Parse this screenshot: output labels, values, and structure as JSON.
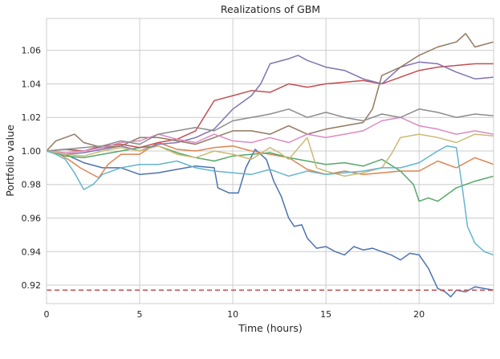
{
  "chart_data": {
    "type": "line",
    "title": "Realizations of GBM",
    "xlabel": "Time (hours)",
    "ylabel": "Portfolio value",
    "xlim": [
      0,
      24
    ],
    "ylim": [
      0.909,
      1.079
    ],
    "xticks": [
      0,
      5,
      10,
      15,
      20
    ],
    "yticks": [
      0.92,
      0.94,
      0.96,
      0.98,
      1.0,
      1.02,
      1.04,
      1.06
    ],
    "grid": true,
    "legend": "none",
    "threshold": {
      "y": 0.917,
      "color": "#c44e52",
      "style": "dashed"
    },
    "series": [
      {
        "color": "#4c72b0",
        "points": [
          [
            0,
            1.0
          ],
          [
            1,
            0.998
          ],
          [
            2,
            0.993
          ],
          [
            3,
            0.99
          ],
          [
            4,
            0.99
          ],
          [
            5,
            0.986
          ],
          [
            6,
            0.987
          ],
          [
            7,
            0.989
          ],
          [
            8,
            0.991
          ],
          [
            9,
            0.99
          ],
          [
            9.2,
            0.978
          ],
          [
            9.8,
            0.975
          ],
          [
            10.3,
            0.975
          ],
          [
            10.7,
            0.99
          ],
          [
            11.2,
            1.001
          ],
          [
            11.8,
            0.995
          ],
          [
            12.2,
            0.982
          ],
          [
            12.6,
            0.973
          ],
          [
            13,
            0.96
          ],
          [
            13.3,
            0.955
          ],
          [
            13.7,
            0.956
          ],
          [
            14,
            0.948
          ],
          [
            14.5,
            0.942
          ],
          [
            15,
            0.943
          ],
          [
            15.5,
            0.94
          ],
          [
            16,
            0.938
          ],
          [
            16.5,
            0.943
          ],
          [
            17,
            0.941
          ],
          [
            17.5,
            0.942
          ],
          [
            18,
            0.94
          ],
          [
            18.5,
            0.938
          ],
          [
            19,
            0.935
          ],
          [
            19.5,
            0.939
          ],
          [
            20,
            0.938
          ],
          [
            20.5,
            0.93
          ],
          [
            21,
            0.918
          ],
          [
            21.4,
            0.916
          ],
          [
            21.7,
            0.913
          ],
          [
            22,
            0.917
          ],
          [
            22.5,
            0.916
          ],
          [
            23,
            0.919
          ],
          [
            23.5,
            0.918
          ],
          [
            24,
            0.917
          ]
        ]
      },
      {
        "color": "#dd8452",
        "points": [
          [
            0,
            1.0
          ],
          [
            0.7,
            0.998
          ],
          [
            1.3,
            0.994
          ],
          [
            1.8,
            0.99
          ],
          [
            2.3,
            0.987
          ],
          [
            2.8,
            0.984
          ],
          [
            3.3,
            0.992
          ],
          [
            4,
            0.998
          ],
          [
            5,
            0.998
          ],
          [
            6,
            1.005
          ],
          [
            7,
            1.001
          ],
          [
            8,
            1.0
          ],
          [
            9,
            1.002
          ],
          [
            10,
            1.003
          ],
          [
            11,
            1.0
          ],
          [
            12,
            0.998
          ],
          [
            13,
            0.996
          ],
          [
            14,
            0.989
          ],
          [
            15,
            0.986
          ],
          [
            16,
            0.988
          ],
          [
            17,
            0.986
          ],
          [
            18,
            0.987
          ],
          [
            19,
            0.988
          ],
          [
            20,
            0.988
          ],
          [
            21,
            0.994
          ],
          [
            22,
            0.99
          ],
          [
            23,
            0.996
          ],
          [
            24,
            0.992
          ]
        ]
      },
      {
        "color": "#55a868",
        "points": [
          [
            0,
            1.0
          ],
          [
            1,
            0.997
          ],
          [
            2,
            0.996
          ],
          [
            3,
            0.998
          ],
          [
            4,
            1.0
          ],
          [
            5,
            1.002
          ],
          [
            6,
            1.003
          ],
          [
            7,
            0.999
          ],
          [
            8,
            0.996
          ],
          [
            9,
            0.994
          ],
          [
            10,
            0.997
          ],
          [
            11,
            0.998
          ],
          [
            12,
            0.999
          ],
          [
            13,
            0.996
          ],
          [
            14,
            0.994
          ],
          [
            15,
            0.992
          ],
          [
            16,
            0.993
          ],
          [
            17,
            0.991
          ],
          [
            18,
            0.995
          ],
          [
            19,
            0.988
          ],
          [
            19.7,
            0.98
          ],
          [
            20,
            0.97
          ],
          [
            20.5,
            0.972
          ],
          [
            21,
            0.97
          ],
          [
            22,
            0.978
          ],
          [
            23,
            0.982
          ],
          [
            24,
            0.985
          ]
        ]
      },
      {
        "color": "#c44e52",
        "points": [
          [
            0,
            1.0
          ],
          [
            1,
            1.001
          ],
          [
            2,
            1.0
          ],
          [
            3,
            1.003
          ],
          [
            4,
            1.004
          ],
          [
            5,
            1.002
          ],
          [
            6,
            1.005
          ],
          [
            7,
            1.007
          ],
          [
            8,
            1.012
          ],
          [
            9,
            1.03
          ],
          [
            10,
            1.033
          ],
          [
            11,
            1.036
          ],
          [
            12,
            1.035
          ],
          [
            13,
            1.04
          ],
          [
            14,
            1.038
          ],
          [
            15,
            1.04
          ],
          [
            16,
            1.041
          ],
          [
            17,
            1.042
          ],
          [
            18,
            1.04
          ],
          [
            19,
            1.044
          ],
          [
            20,
            1.048
          ],
          [
            21,
            1.05
          ],
          [
            22,
            1.051
          ],
          [
            23,
            1.052
          ],
          [
            24,
            1.052
          ]
        ]
      },
      {
        "color": "#8172b3",
        "points": [
          [
            0,
            1.0
          ],
          [
            1,
            0.998
          ],
          [
            2,
            0.999
          ],
          [
            3,
            1.001
          ],
          [
            4,
            1.003
          ],
          [
            5,
            1.0
          ],
          [
            6,
            1.004
          ],
          [
            7,
            1.005
          ],
          [
            8,
            1.008
          ],
          [
            9,
            1.013
          ],
          [
            10,
            1.025
          ],
          [
            11,
            1.033
          ],
          [
            11.5,
            1.04
          ],
          [
            12,
            1.052
          ],
          [
            13,
            1.055
          ],
          [
            13.5,
            1.057
          ],
          [
            14,
            1.054
          ],
          [
            15,
            1.05
          ],
          [
            16,
            1.048
          ],
          [
            17,
            1.043
          ],
          [
            18,
            1.04
          ],
          [
            19,
            1.05
          ],
          [
            20,
            1.053
          ],
          [
            21,
            1.052
          ],
          [
            22,
            1.047
          ],
          [
            23,
            1.043
          ],
          [
            24,
            1.044
          ]
        ]
      },
      {
        "color": "#937860",
        "points": [
          [
            0,
            1.0
          ],
          [
            0.5,
            1.006
          ],
          [
            1,
            1.008
          ],
          [
            1.5,
            1.01
          ],
          [
            2,
            1.005
          ],
          [
            3,
            1.002
          ],
          [
            4,
            1.003
          ],
          [
            5,
            1.008
          ],
          [
            6,
            1.008
          ],
          [
            7,
            1.006
          ],
          [
            8,
            1.004
          ],
          [
            9,
            1.008
          ],
          [
            10,
            1.012
          ],
          [
            11,
            1.012
          ],
          [
            12,
            1.01
          ],
          [
            13,
            1.015
          ],
          [
            14,
            1.01
          ],
          [
            15,
            1.013
          ],
          [
            16,
            1.015
          ],
          [
            17,
            1.017
          ],
          [
            17.5,
            1.025
          ],
          [
            18,
            1.045
          ],
          [
            19,
            1.05
          ],
          [
            20,
            1.057
          ],
          [
            21,
            1.062
          ],
          [
            22,
            1.065
          ],
          [
            22.5,
            1.07
          ],
          [
            23,
            1.062
          ],
          [
            24,
            1.065
          ]
        ]
      },
      {
        "color": "#da8bc3",
        "points": [
          [
            0,
            1.0
          ],
          [
            1,
            0.999
          ],
          [
            2,
            1.0
          ],
          [
            3,
            1.002
          ],
          [
            4,
            1.005
          ],
          [
            5,
            1.006
          ],
          [
            6,
            1.01
          ],
          [
            7,
            1.007
          ],
          [
            8,
            1.005
          ],
          [
            9,
            1.01
          ],
          [
            10,
            1.006
          ],
          [
            11,
            1.005
          ],
          [
            12,
            1.008
          ],
          [
            13,
            1.005
          ],
          [
            14,
            1.01
          ],
          [
            15,
            1.008
          ],
          [
            16,
            1.01
          ],
          [
            17,
            1.012
          ],
          [
            18,
            1.018
          ],
          [
            19,
            1.02
          ],
          [
            20,
            1.015
          ],
          [
            21,
            1.013
          ],
          [
            22,
            1.01
          ],
          [
            23,
            1.012
          ],
          [
            24,
            1.01
          ]
        ]
      },
      {
        "color": "#8c8c8c",
        "points": [
          [
            0,
            1.0
          ],
          [
            1,
            1.001
          ],
          [
            2,
            1.002
          ],
          [
            3,
            1.003
          ],
          [
            4,
            1.006
          ],
          [
            5,
            1.004
          ],
          [
            6,
            1.01
          ],
          [
            7,
            1.012
          ],
          [
            8,
            1.014
          ],
          [
            9,
            1.012
          ],
          [
            10,
            1.018
          ],
          [
            11,
            1.02
          ],
          [
            12,
            1.022
          ],
          [
            13,
            1.025
          ],
          [
            14,
            1.02
          ],
          [
            15,
            1.023
          ],
          [
            16,
            1.02
          ],
          [
            17,
            1.018
          ],
          [
            18,
            1.022
          ],
          [
            19,
            1.02
          ],
          [
            20,
            1.025
          ],
          [
            21,
            1.023
          ],
          [
            22,
            1.02
          ],
          [
            23,
            1.022
          ],
          [
            24,
            1.021
          ]
        ]
      },
      {
        "color": "#ccb974",
        "points": [
          [
            0,
            1.0
          ],
          [
            1,
            0.998
          ],
          [
            2,
            0.997
          ],
          [
            3,
            1.0
          ],
          [
            4,
            1.002
          ],
          [
            5,
            1.0
          ],
          [
            6,
            1.003
          ],
          [
            7,
            0.998
          ],
          [
            8,
            0.996
          ],
          [
            9,
            1.0
          ],
          [
            10,
            0.998
          ],
          [
            11,
            0.995
          ],
          [
            12,
            1.002
          ],
          [
            12.5,
            0.999
          ],
          [
            13,
            0.995
          ],
          [
            14,
            1.008
          ],
          [
            14.5,
            0.99
          ],
          [
            15,
            0.988
          ],
          [
            16,
            0.985
          ],
          [
            17,
            0.987
          ],
          [
            18,
            0.99
          ],
          [
            18.5,
            0.998
          ],
          [
            19,
            1.008
          ],
          [
            20,
            1.01
          ],
          [
            21,
            1.008
          ],
          [
            22,
            1.005
          ],
          [
            23,
            1.01
          ],
          [
            24,
            1.009
          ]
        ]
      },
      {
        "color": "#64b5cd",
        "points": [
          [
            0,
            1.0
          ],
          [
            0.5,
            0.998
          ],
          [
            1,
            0.995
          ],
          [
            1.5,
            0.987
          ],
          [
            2,
            0.977
          ],
          [
            2.5,
            0.98
          ],
          [
            3,
            0.986
          ],
          [
            4,
            0.99
          ],
          [
            5,
            0.992
          ],
          [
            6,
            0.992
          ],
          [
            7,
            0.994
          ],
          [
            8,
            0.99
          ],
          [
            9,
            0.988
          ],
          [
            10,
            0.987
          ],
          [
            11,
            0.986
          ],
          [
            12,
            0.989
          ],
          [
            13,
            0.985
          ],
          [
            14,
            0.988
          ],
          [
            15,
            0.986
          ],
          [
            16,
            0.987
          ],
          [
            17,
            0.988
          ],
          [
            18,
            0.99
          ],
          [
            19,
            0.99
          ],
          [
            20,
            0.993
          ],
          [
            21,
            1.0
          ],
          [
            21.5,
            1.003
          ],
          [
            22,
            1.002
          ],
          [
            22.3,
            0.98
          ],
          [
            22.6,
            0.955
          ],
          [
            23,
            0.945
          ],
          [
            23.5,
            0.94
          ],
          [
            24,
            0.938
          ]
        ]
      }
    ]
  }
}
